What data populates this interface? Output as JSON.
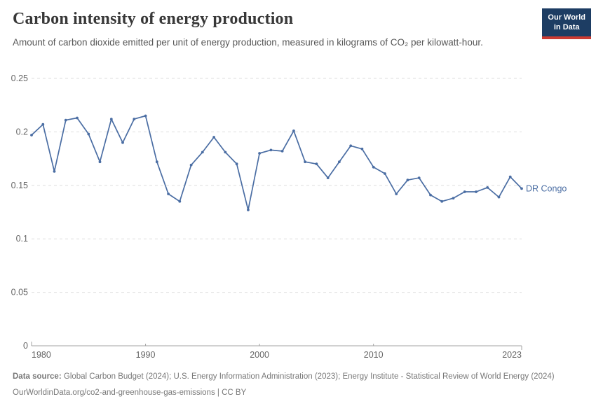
{
  "header": {
    "title": "Carbon intensity of energy production",
    "subtitle": "Amount of carbon dioxide emitted per unit of energy production, measured in kilograms of CO₂ per kilowatt-hour.",
    "logo": {
      "line1": "Our World",
      "line2": "in Data",
      "bg_color": "#1d3d63",
      "accent_color": "#cc3b32"
    }
  },
  "chart_data": {
    "type": "line",
    "title": "Carbon intensity of energy production",
    "ylabel": "kilograms of CO₂ per kilowatt-hour",
    "xlabel": "",
    "grid": "horizontal-dashed",
    "legend_position": "end-of-line-label",
    "x_domain": [
      1980,
      2023
    ],
    "y_domain": [
      0,
      0.25
    ],
    "x": [
      1980,
      1981,
      1982,
      1983,
      1984,
      1985,
      1986,
      1987,
      1988,
      1989,
      1990,
      1991,
      1992,
      1993,
      1994,
      1995,
      1996,
      1997,
      1998,
      1999,
      2000,
      2001,
      2002,
      2003,
      2004,
      2005,
      2006,
      2007,
      2008,
      2009,
      2010,
      2011,
      2012,
      2013,
      2014,
      2015,
      2016,
      2017,
      2018,
      2019,
      2020,
      2021,
      2022,
      2023
    ],
    "series": [
      {
        "name": "DR Congo",
        "color": "#4a6da3",
        "values": [
          0.197,
          0.207,
          0.163,
          0.211,
          0.213,
          0.198,
          0.172,
          0.212,
          0.19,
          0.212,
          0.215,
          0.172,
          0.142,
          0.135,
          0.169,
          0.181,
          0.195,
          0.181,
          0.17,
          0.127,
          0.18,
          0.183,
          0.182,
          0.201,
          0.172,
          0.17,
          0.157,
          0.172,
          0.187,
          0.184,
          0.167,
          0.161,
          0.142,
          0.155,
          0.157,
          0.141,
          0.135,
          0.138,
          0.144,
          0.144,
          0.148,
          0.139,
          0.158,
          0.147
        ]
      }
    ],
    "y_ticks": [
      {
        "v": 0,
        "label": "0"
      },
      {
        "v": 0.05,
        "label": "0.05"
      },
      {
        "v": 0.1,
        "label": "0.1"
      },
      {
        "v": 0.15,
        "label": "0.15"
      },
      {
        "v": 0.2,
        "label": "0.2"
      },
      {
        "v": 0.25,
        "label": "0.25"
      }
    ],
    "x_ticks": [
      {
        "v": 1980,
        "label": "1980",
        "anchor": "start"
      },
      {
        "v": 1990,
        "label": "1990",
        "anchor": "middle"
      },
      {
        "v": 2000,
        "label": "2000",
        "anchor": "middle"
      },
      {
        "v": 2010,
        "label": "2010",
        "anchor": "middle"
      },
      {
        "v": 2023,
        "label": "2023",
        "anchor": "end"
      }
    ],
    "colors": {
      "gridline": "#dedede",
      "axis": "#a3a3a3",
      "tick_label": "#666666"
    }
  },
  "footer": {
    "data_source_label": "Data source:",
    "data_source_text": "Global Carbon Budget (2024); U.S. Energy Information Administration (2023); Energy Institute - Statistical Review of World Energy (2024)",
    "url": "OurWorldinData.org/co2-and-greenhouse-gas-emissions",
    "separator": "|",
    "license": "CC BY"
  }
}
